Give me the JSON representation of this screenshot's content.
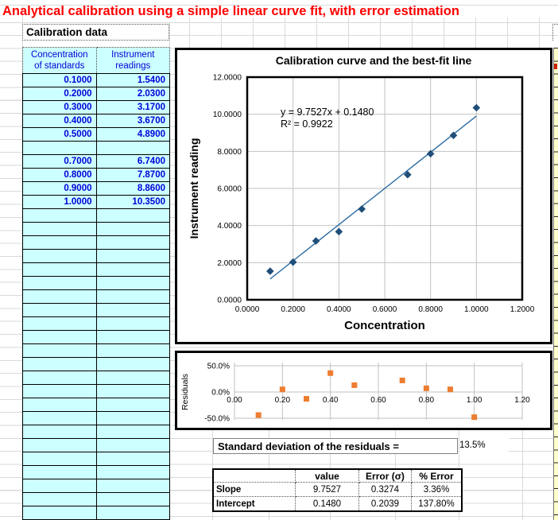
{
  "title": "Analytical calibration using a simple linear curve fit, with error estimation",
  "calibration_table": {
    "label": "Calibration data",
    "column_headers": [
      [
        "Concentration",
        "of standards"
      ],
      [
        "Instrument",
        "readings"
      ]
    ],
    "rows": [
      [
        "0.1000",
        "1.5400"
      ],
      [
        "0.2000",
        "2.0300"
      ],
      [
        "0.3000",
        "3.1700"
      ],
      [
        "0.4000",
        "3.6700"
      ],
      [
        "0.5000",
        "4.8900"
      ],
      [
        "",
        ""
      ],
      [
        "0.7000",
        "6.7400"
      ],
      [
        "0.8000",
        "7.8700"
      ],
      [
        "0.9000",
        "8.8600"
      ],
      [
        "1.0000",
        "10.3500"
      ]
    ],
    "empty_row_count": 24
  },
  "chart_data": [
    {
      "id": "main",
      "type": "scatter",
      "title": "Calibration curve and the best-fit line",
      "xlabel": "Concentration",
      "ylabel": "Instrument reading",
      "equation_line1": "y = 9.7527x + 0.1480",
      "equation_line2": "R² = 0.9922",
      "x": [
        0.1,
        0.2,
        0.3,
        0.4,
        0.5,
        0.7,
        0.8,
        0.9,
        1.0
      ],
      "y": [
        1.54,
        2.03,
        3.17,
        3.67,
        4.89,
        6.74,
        7.87,
        8.86,
        10.35
      ],
      "fit": {
        "slope": 9.7527,
        "intercept": 0.148,
        "x_start": 0.1,
        "x_end": 1.0
      },
      "xlim": [
        0,
        1.2
      ],
      "ylim": [
        0,
        12
      ],
      "x_ticks": [
        "0.0000",
        "0.2000",
        "0.4000",
        "0.6000",
        "0.8000",
        "1.0000",
        "1.2000"
      ],
      "y_ticks": [
        "0.0000",
        "2.0000",
        "4.0000",
        "6.0000",
        "8.0000",
        "10.0000",
        "12.0000"
      ],
      "grid": true,
      "marker_color": "#1f4e79",
      "line_color": "#2e6da4"
    },
    {
      "id": "residuals",
      "type": "scatter",
      "ylabel": "Residuals",
      "x": [
        0.1,
        0.2,
        0.3,
        0.4,
        0.5,
        0.7,
        0.8,
        0.9,
        1.0
      ],
      "y_percent": [
        -44,
        5,
        -13,
        36,
        13,
        22,
        7,
        5,
        -48
      ],
      "xlim": [
        0,
        1.2
      ],
      "ylim_percent": [
        -50,
        50
      ],
      "x_ticks": [
        "0.00",
        "0.20",
        "0.40",
        "0.60",
        "0.80",
        "1.00",
        "1.20"
      ],
      "y_ticks": [
        "50.0%",
        "0.0%",
        "-50.0%"
      ],
      "grid": true,
      "marker_color": "#ed7d31"
    }
  ],
  "stats": {
    "stddev_label": "Standard deviation of the residuals =",
    "stddev_value": "13.5%"
  },
  "summary_table": {
    "headers": [
      "",
      "value",
      "Error (σ)",
      "% Error"
    ],
    "rows": [
      [
        "Slope",
        "9.7527",
        "0.3274",
        "3.36%"
      ],
      [
        "Intercept",
        "0.1480",
        "0.2039",
        "137.80%"
      ]
    ]
  },
  "colors": {
    "title_red": "#ff0000",
    "cell_fill_cyan": "#ccffff",
    "cell_text_blue": "#0000d8",
    "side_strip_yellow": "#ffffcc",
    "marker_navy": "#1f4e79",
    "fit_line_blue": "#2e6da4",
    "residual_orange": "#ed7d31"
  }
}
